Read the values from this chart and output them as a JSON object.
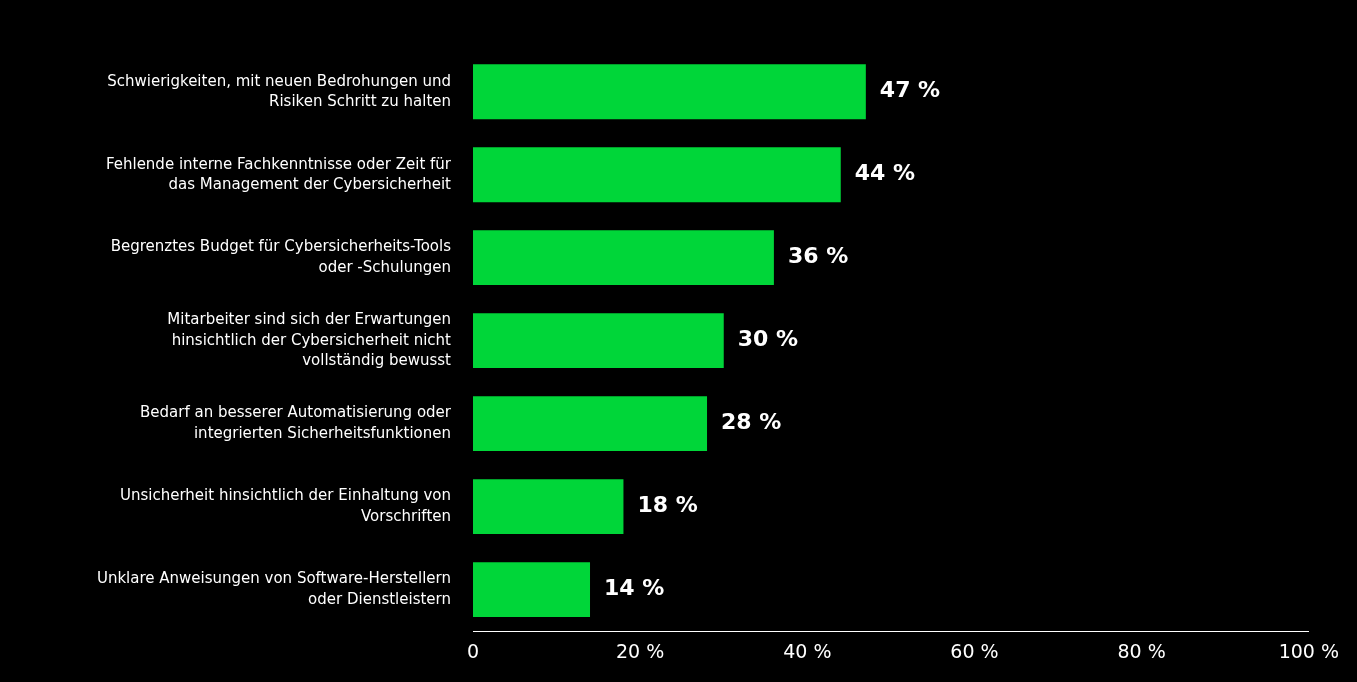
{
  "chart_data": {
    "type": "bar",
    "orientation": "horizontal",
    "categories": [
      "Schwierigkeiten, mit neuen Bedrohungen und Risiken Schritt zu halten",
      "Fehlende interne Fachkenntnisse oder Zeit für das Management der Cybersicherheit",
      "Begrenztes Budget für Cybersicherheits-Tools oder -Schulungen",
      "Mitarbeiter sind sich der Erwartungen hinsichtlich der Cybersicherheit nicht vollständig bewusst",
      "Bedarf an besserer Automatisierung oder integrierten Sicherheitsfunktionen",
      "Unsicherheit hinsichtlich der Einhaltung von Vorschriften",
      "Unklare Anweisungen von Software-Herstellern oder Dienstleistern"
    ],
    "values": [
      47,
      44,
      36,
      30,
      28,
      18,
      14
    ],
    "value_labels": [
      "47 %",
      "44 %",
      "36 %",
      "30 %",
      "28 %",
      "18 %",
      "14 %"
    ],
    "color": "#00d639",
    "xlim": [
      0,
      100
    ],
    "xticks": [
      0,
      {
        "value": 20,
        "label": "20 %"
      },
      {
        "value": 40,
        "label": "40 %"
      },
      {
        "value": 60,
        "label": "60 %"
      },
      {
        "value": 80,
        "label": "80 %"
      },
      {
        "value": 100,
        "label": "100 %"
      }
    ],
    "grid": false,
    "legend": false
  }
}
